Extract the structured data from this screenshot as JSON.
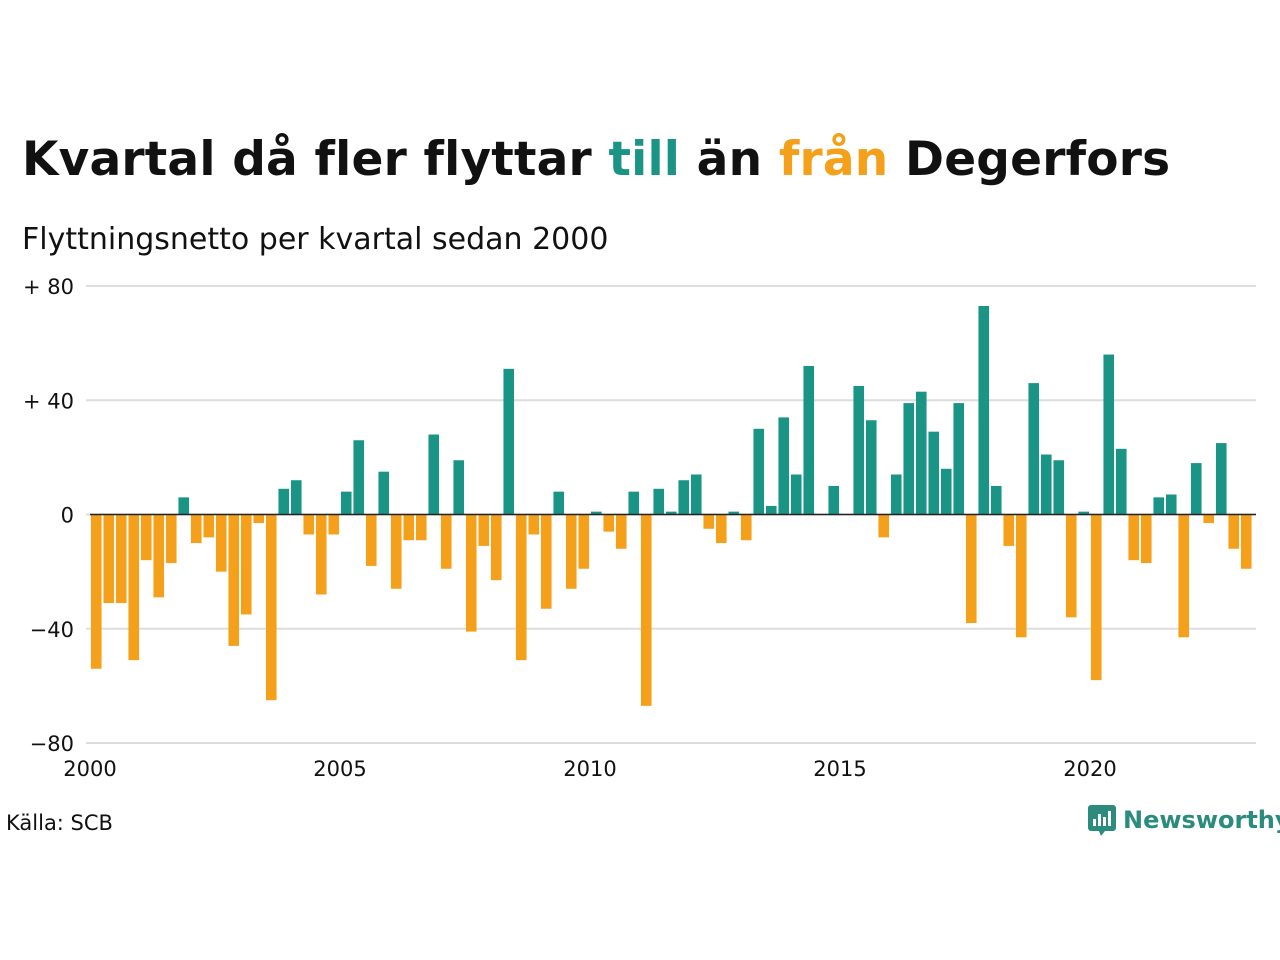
{
  "title": {
    "part1": "Kvartal då fler flyttar ",
    "word_in": "till",
    "part2": " än ",
    "word_out": "från",
    "part3": " Degerfors"
  },
  "subtitle": "Flyttningsnetto per kvartal sedan 2000",
  "source": "Källa: SCB",
  "brand": "Newsworthy",
  "colors": {
    "positive": "#1a9484",
    "negative": "#f5a01a",
    "grid": "#dddddd",
    "text": "#111111",
    "brand": "#2b8c7e"
  },
  "chart_data": {
    "type": "bar",
    "start_year": 2000,
    "periods_per_year": 4,
    "ylim": [
      -80,
      80
    ],
    "yticks": [
      80,
      40,
      0,
      -40,
      -80
    ],
    "ytick_labels": [
      "+ 80",
      "+ 40",
      "0",
      "−40",
      "−80"
    ],
    "xticks": [
      2000,
      2005,
      2010,
      2015,
      2020
    ],
    "xtick_labels": [
      "2000",
      "2005",
      "2010",
      "2015",
      "2020"
    ],
    "grid": "horizontal",
    "values": [
      -54,
      -31,
      -31,
      -51,
      -16,
      -29,
      -17,
      6,
      -10,
      -8,
      -20,
      -46,
      -35,
      -3,
      -65,
      9,
      12,
      -7,
      -28,
      -7,
      8,
      26,
      -18,
      15,
      -26,
      -9,
      -9,
      28,
      -19,
      19,
      -41,
      -11,
      -23,
      51,
      -51,
      -7,
      -33,
      8,
      -26,
      -19,
      1,
      -6,
      -12,
      8,
      -67,
      9,
      1,
      12,
      14,
      -5,
      -10,
      1,
      -9,
      30,
      3,
      34,
      14,
      52,
      0,
      10,
      0,
      45,
      33,
      -8,
      14,
      39,
      43,
      29,
      16,
      39,
      -38,
      73,
      10,
      -11,
      -43,
      46,
      21,
      19,
      -36,
      1,
      -58,
      56,
      23,
      -16,
      -17,
      6,
      7,
      -43,
      18,
      -3,
      25,
      -12,
      -19
    ]
  }
}
